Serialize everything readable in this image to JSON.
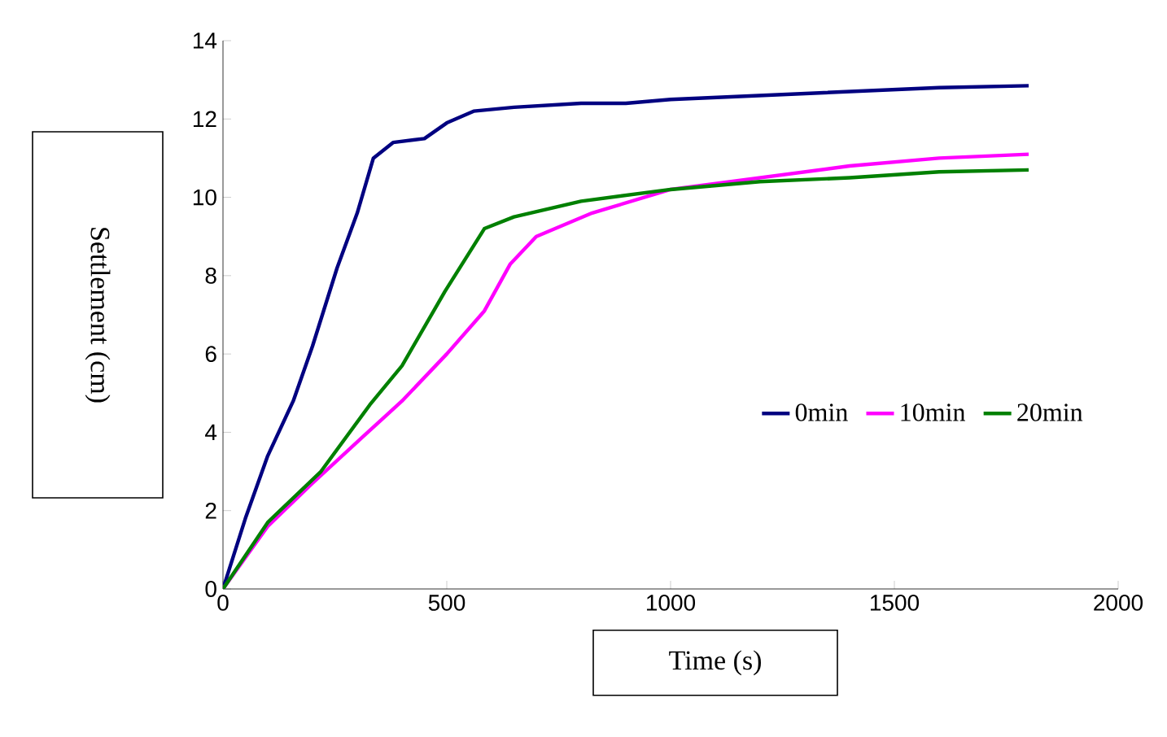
{
  "chart_data": {
    "type": "line",
    "xlabel": "Time (s)",
    "ylabel": "Settlement (cm)",
    "xlim": [
      0,
      2000
    ],
    "ylim": [
      0,
      14
    ],
    "xticks": [
      0,
      500,
      1000,
      1500,
      2000
    ],
    "yticks": [
      0,
      2,
      4,
      6,
      8,
      10,
      12,
      14
    ],
    "grid": false,
    "legend": "right",
    "marker": "none",
    "line_style": "solid",
    "series": [
      {
        "name": "0min",
        "color": "#000080",
        "x": [
          0,
          50,
          100,
          157,
          200,
          255,
          300,
          336,
          380,
          450,
          500,
          560,
          650,
          800,
          900,
          1000,
          1200,
          1400,
          1600,
          1800
        ],
        "values": [
          0,
          1.8,
          3.4,
          4.8,
          6.2,
          8.2,
          9.6,
          11.0,
          11.4,
          11.5,
          11.9,
          12.2,
          12.3,
          12.4,
          12.4,
          12.5,
          12.6,
          12.7,
          12.8,
          12.85
        ]
      },
      {
        "name": "10min",
        "color": "#ff00ff",
        "x": [
          0,
          100,
          200,
          314,
          400,
          500,
          584,
          642,
          700,
          825,
          1000,
          1200,
          1400,
          1600,
          1800
        ],
        "values": [
          0,
          1.6,
          2.7,
          3.9,
          4.8,
          6.0,
          7.1,
          8.3,
          9.0,
          9.6,
          10.2,
          10.5,
          10.8,
          11.0,
          11.1
        ]
      },
      {
        "name": "20min",
        "color": "#008000",
        "x": [
          0,
          100,
          219,
          328,
          400,
          496,
          584,
          650,
          800,
          1000,
          1200,
          1400,
          1600,
          1800
        ],
        "values": [
          0,
          1.7,
          3.0,
          4.7,
          5.7,
          7.6,
          9.2,
          9.5,
          9.9,
          10.2,
          10.4,
          10.5,
          10.65,
          10.7
        ]
      }
    ]
  }
}
